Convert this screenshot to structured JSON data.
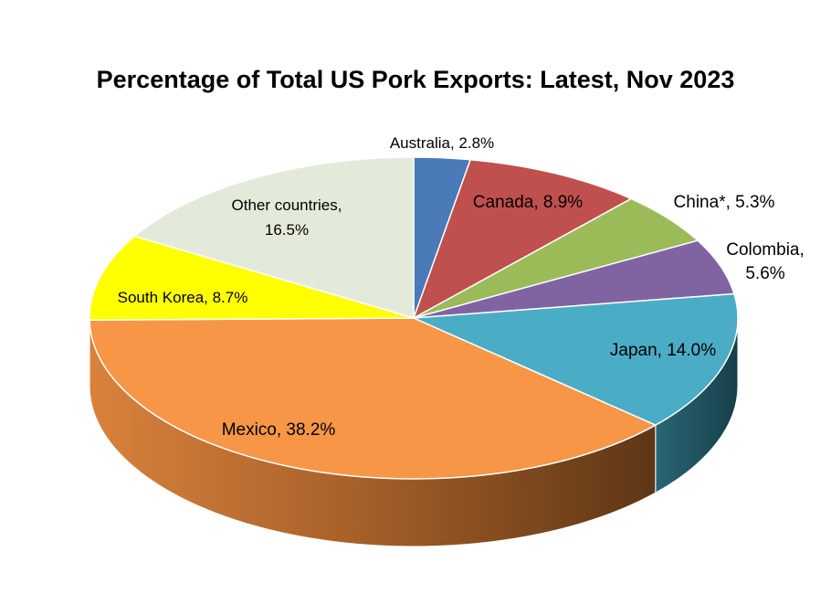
{
  "chart_data": {
    "type": "pie",
    "title": "Percentage of Total US Pork Exports: Latest, Nov 2023",
    "slices": [
      {
        "name": "Australia",
        "value": 2.8,
        "label": "Australia, 2.8%",
        "color": "#4a7ab8"
      },
      {
        "name": "Canada",
        "value": 8.9,
        "label": "Canada, 8.9%",
        "color": "#c0504d"
      },
      {
        "name": "China*",
        "value": 5.3,
        "label": "China*, 5.3%",
        "color": "#9bbb59"
      },
      {
        "name": "Colombia",
        "value": 5.6,
        "label_lines": [
          "Colombia,",
          "5.6%"
        ],
        "color": "#8064a2"
      },
      {
        "name": "Japan",
        "value": 14.0,
        "label": "Japan, 14.0%",
        "color": "#4bacc6"
      },
      {
        "name": "Mexico",
        "value": 38.2,
        "label": "Mexico, 38.2%",
        "color": "#f79646"
      },
      {
        "name": "South Korea",
        "value": 8.7,
        "label": "South Korea, 8.7%",
        "color": "#ffff00"
      },
      {
        "name": "Other countries",
        "value": 16.5,
        "label_lines": [
          "Other countries,",
          "16.5%"
        ],
        "color": "#e4ead9"
      }
    ],
    "legend": "none",
    "style": "3d-pie"
  }
}
